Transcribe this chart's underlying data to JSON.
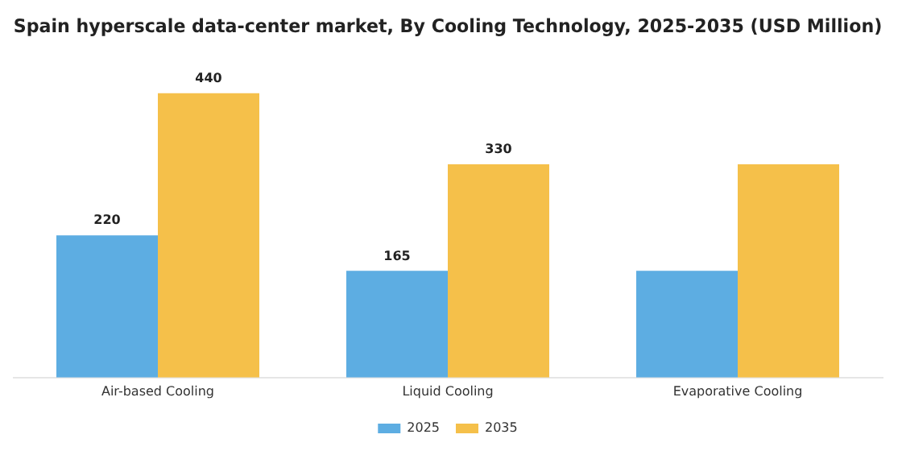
{
  "chart_data": {
    "type": "bar",
    "title": "Spain hyperscale data-center market, By Cooling Technology, 2025-2035 (USD Million)",
    "categories": [
      "Air-based Cooling",
      "Liquid Cooling",
      "Evaporative Cooling"
    ],
    "series": [
      {
        "name": "2025",
        "color": "#5dade2",
        "values": [
          220,
          165,
          165
        ],
        "value_labels": [
          "220",
          "165",
          null
        ]
      },
      {
        "name": "2035",
        "color": "#f5c04a",
        "values": [
          440,
          330,
          330
        ],
        "value_labels": [
          "440",
          "330",
          null
        ]
      }
    ],
    "legend": "bottom",
    "grid": false
  }
}
